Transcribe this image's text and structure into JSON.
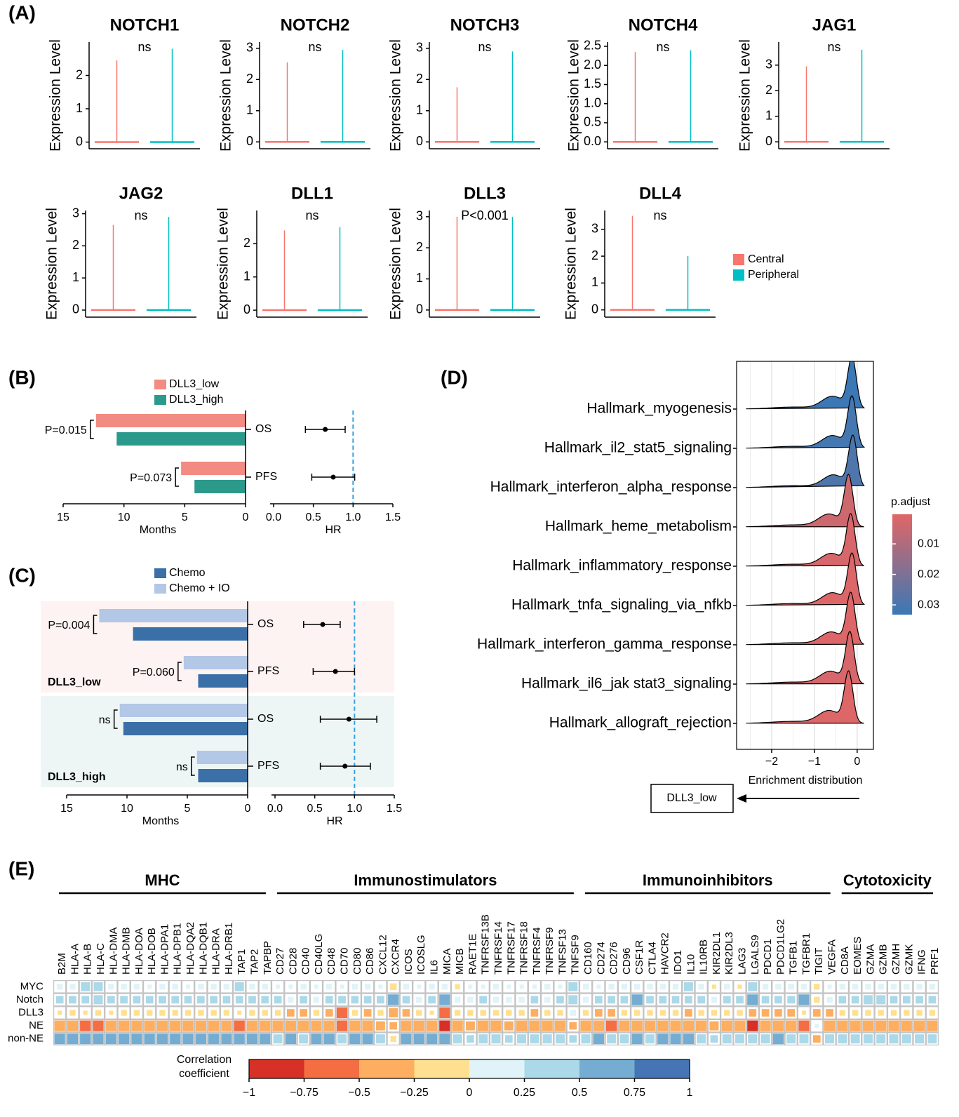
{
  "panel_labels": [
    "(A)",
    "(B)",
    "(C)",
    "(D)",
    "(E)"
  ],
  "violin_legend": [
    {
      "name": "Central",
      "color": "#f8766d"
    },
    {
      "name": "Peripheral",
      "color": "#00bfc4"
    }
  ],
  "chart_data": [
    {
      "type": "violin",
      "title": "NOTCH1",
      "annotation": "ns",
      "ylabel": "Expression Level",
      "values": [
        2.45,
        2.8
      ],
      "ylim": [
        -0.2,
        3.0
      ],
      "yticks": [
        0,
        1,
        2
      ]
    },
    {
      "type": "violin",
      "title": "NOTCH2",
      "annotation": "ns",
      "ylabel": "Expression Level",
      "values": [
        2.55,
        2.95
      ],
      "ylim": [
        -0.22,
        3.2
      ],
      "yticks": [
        0,
        1,
        2,
        3
      ]
    },
    {
      "type": "violin",
      "title": "NOTCH3",
      "annotation": "ns",
      "ylabel": "Expression Level",
      "values": [
        1.75,
        2.9
      ],
      "ylim": [
        -0.22,
        3.2
      ],
      "yticks": [
        0,
        1,
        2,
        3
      ]
    },
    {
      "type": "violin",
      "title": "NOTCH4",
      "annotation": "ns",
      "ylabel": "Expression Level",
      "values": [
        2.35,
        2.4
      ],
      "ylim": [
        -0.18,
        2.61
      ],
      "yticks": [
        {
          "value": 0,
          "label": "0.0"
        },
        0.5,
        {
          "value": 1,
          "label": "1.0"
        },
        1.5,
        {
          "value": 2,
          "label": "2.0"
        },
        2.5
      ]
    },
    {
      "type": "violin",
      "title": "JAG1",
      "annotation": "ns",
      "ylabel": "Expression Level",
      "values": [
        2.95,
        3.6
      ],
      "ylim": [
        -0.27,
        3.9
      ],
      "yticks": [
        0,
        1,
        2,
        3
      ]
    },
    {
      "type": "violin",
      "title": "JAG2",
      "annotation": "ns",
      "ylabel": "Expression Level",
      "values": [
        2.65,
        2.9
      ],
      "ylim": [
        -0.22,
        3.1
      ],
      "yticks": [
        0,
        1,
        2,
        3
      ]
    },
    {
      "type": "violin",
      "title": "DLL1",
      "annotation": "ns",
      "ylabel": "Expression Level",
      "values": [
        2.4,
        2.5
      ],
      "ylim": [
        -0.21,
        3.0
      ],
      "yticks": [
        0,
        1,
        2
      ]
    },
    {
      "type": "violin",
      "title": "DLL3",
      "annotation": "P<0.001",
      "ylabel": "Expression Level",
      "values": [
        3.0,
        3.0
      ],
      "ylim": [
        -0.23,
        3.2
      ],
      "yticks": [
        0,
        1,
        2,
        3
      ]
    },
    {
      "type": "violin",
      "title": "DLL4",
      "annotation": "ns",
      "ylabel": "Expression Level",
      "values": [
        3.5,
        2.0
      ],
      "ylim": [
        -0.27,
        3.7
      ],
      "yticks": [
        0,
        1,
        2,
        3
      ]
    },
    {
      "type": "hbar",
      "categories": [
        "OS",
        "PFS"
      ],
      "series": [
        {
          "name": "DLL3_low",
          "color": "#f28b82",
          "values": [
            12.3,
            5.3
          ]
        },
        {
          "name": "DLL3_high",
          "color": "#2b9a8b",
          "values": [
            10.6,
            4.2
          ]
        }
      ],
      "annotations": [
        "P=0.015",
        "P=0.073"
      ],
      "xlim": [
        0,
        15
      ],
      "xticks": [
        0,
        5,
        10,
        15
      ],
      "xlabel": "Months"
    },
    {
      "type": "forest",
      "values": [
        0.65,
        0.75
      ],
      "ci_low": [
        0.4,
        0.48
      ],
      "ci_high": [
        0.9,
        1.02
      ],
      "reference": 1,
      "xlim": [
        0,
        1.5
      ],
      "xticks": [
        {
          "value": 0,
          "label": "0.0"
        },
        0.5,
        {
          "value": 1,
          "label": "1.0"
        },
        1.5
      ],
      "xlabel": "HR"
    },
    {
      "type": "hbar",
      "categories": [
        "OS",
        "PFS",
        "OS",
        "PFS"
      ],
      "groups": [
        {
          "name": "DLL3_low",
          "color": "#f07c74",
          "background": "#fdf3f2"
        },
        {
          "name": "DLL3_high",
          "color": "#2b9a8b",
          "background": "#eef6f5"
        }
      ],
      "series": [
        {
          "name": "Chemo",
          "color": "#3a6fa8",
          "values": [
            9.5,
            4.1,
            10.3,
            4.1
          ]
        },
        {
          "name": "Chemo + IO",
          "color": "#b3c7e6",
          "values": [
            12.3,
            5.3,
            10.6,
            4.2
          ]
        }
      ],
      "annotations": [
        "P=0.004",
        "P=0.060",
        "ns",
        "ns"
      ],
      "xlim": [
        0,
        15
      ],
      "xticks": [
        0,
        5,
        10,
        15
      ],
      "xlabel": "Months"
    },
    {
      "type": "forest",
      "values": [
        0.6,
        0.76,
        0.93,
        0.88
      ],
      "ci_low": [
        0.36,
        0.48,
        0.57,
        0.57
      ],
      "ci_high": [
        0.82,
        1.0,
        1.28,
        1.2
      ],
      "reference": 1,
      "xlim": [
        0,
        1.5
      ],
      "xticks": [
        {
          "value": 0,
          "label": "0.0"
        },
        0.5,
        {
          "value": 1,
          "label": "1.0"
        },
        1.5
      ],
      "xlabel": "HR"
    },
    {
      "type": "ridge",
      "categories": [
        "Hallmark_myogenesis",
        "Hallmark_il2_stat5_signaling",
        "Hallmark_interferon_alpha_response",
        "Hallmark_heme_metabolism",
        "Hallmark_inflammatory_response",
        "Hallmark_tnfa_signaling_via_nfkb",
        "Hallmark_interferon_gamma_response",
        "Hallmark_il6_jak stat3_signaling",
        "Hallmark_allograft_rejection"
      ],
      "label_colors": [
        "#000000",
        "#e8191e",
        "#e8191e",
        "#000000",
        "#e8191e",
        "#e8191e",
        "#e8191e",
        "#e8191e",
        "#000000"
      ],
      "values": [
        -0.12,
        -0.12,
        -0.1,
        -0.2,
        -0.15,
        -0.12,
        -0.15,
        -0.17,
        -0.2
      ],
      "p_adjust": [
        0.033,
        0.031,
        0.029,
        0.004,
        0.002,
        0.001,
        0.001,
        0.002,
        0.001
      ],
      "xlim": [
        -2.82,
        0.38
      ],
      "xticks": [
        {
          "value": -2,
          "label": "−2"
        },
        {
          "value": -1,
          "label": "−1"
        },
        0
      ],
      "grid": true,
      "xlabel": "Enrichment distribution",
      "direction_label": "DLL3_low",
      "colorbar": {
        "title": "p.adjust",
        "colors": [
          "#e06666",
          "#3a78b5"
        ],
        "clim": [
          0.0003,
          0.0332
        ],
        "ticks": [
          0.01,
          0.02,
          0.03
        ]
      }
    },
    {
      "type": "heatmap",
      "groups": [
        {
          "name": "MHC",
          "columns": [
            "B2M",
            "HLA-A",
            "HLA-B",
            "HLA-C",
            "HLA-DMA",
            "HLA-DMB",
            "HLA-DOA",
            "HLA-DOB",
            "HLA-DPA1",
            "HLA-DPB1",
            "HLA-DQA2",
            "HLA-DQB1",
            "HLA-DRA",
            "HLA-DRB1",
            "TAP1",
            "TAP2",
            "TAPBP"
          ]
        },
        {
          "name": "Immunostimulators",
          "columns": [
            "CD27",
            "CD28",
            "CD40",
            "CD40LG",
            "CD48",
            "CD70",
            "CD80",
            "CD86",
            "CXCL12",
            "CXCR4",
            "ICOS",
            "ICOSLG",
            "IL6",
            "MICA",
            "MICB",
            "RAET1E",
            "TNFRSF13B",
            "TNFRSF14",
            "TNFRSF17",
            "TNFRSF18",
            "TNFRSF4",
            "TNFRSF9",
            "TNFSF13",
            "TNFSF9"
          ]
        },
        {
          "name": "Immunoinhibitors",
          "columns": [
            "CD160",
            "CD274",
            "CD276",
            "CD96",
            "CSF1R",
            "CTLA4",
            "HAVCR2",
            "IDO1",
            "IL10",
            "IL10RB",
            "KIR2DL1",
            "KIR2DL3",
            "LAG3",
            "LGALS9",
            "PDCD1",
            "PDCD1LG2",
            "TGFB1",
            "TGFBR1",
            "TIGIT",
            "VEGFA"
          ]
        },
        {
          "name": "Cytotoxicity",
          "columns": [
            "CD8A",
            "EOMES",
            "GZMA",
            "GZMB",
            "GZMH",
            "GZMK",
            "IFNG",
            "PRF1"
          ]
        }
      ],
      "rows": [
        "MYC",
        "Notch",
        "DLL3",
        "NE",
        "non-NE"
      ],
      "values": [
        [
          0.2,
          0.2,
          0.4,
          0.4,
          0.2,
          0.2,
          0.2,
          0.1,
          0.2,
          0.2,
          0.1,
          0.2,
          0.2,
          0.2,
          0.4,
          0.2,
          0.2,
          0.1,
          0.1,
          0.2,
          0.1,
          0.2,
          0.1,
          0.2,
          0.2,
          0.1,
          -0.25,
          0.2,
          0.1,
          0.2,
          0.2,
          -0.15,
          0.1,
          0.1,
          0.2,
          0.1,
          0.1,
          0.1,
          0.2,
          0.1,
          0.4,
          0.2,
          0.1,
          0.2,
          0.2,
          0.2,
          0.2,
          0.2,
          0.2,
          0.4,
          0.2,
          -0.1,
          0.2,
          -0.1,
          0.4,
          0.2,
          0.2,
          0.2,
          0.2,
          -0.2,
          0.1,
          0.2,
          0.2,
          0.2,
          0.2,
          0.2,
          0.2,
          0.2,
          0.2
        ],
        [
          0.3,
          0.3,
          0.3,
          0.4,
          0.3,
          0.3,
          0.3,
          0.3,
          0.3,
          0.3,
          0.3,
          0.3,
          0.3,
          0.3,
          0.3,
          0.3,
          0.3,
          0.3,
          0.2,
          0.3,
          0.2,
          0.3,
          0.3,
          0.3,
          0.3,
          0.3,
          0.6,
          0.3,
          0.2,
          0.3,
          0.6,
          0.2,
          0.2,
          0.3,
          0.2,
          0.2,
          0.2,
          0.3,
          0.2,
          0.3,
          0.4,
          0.2,
          0.3,
          0.3,
          0.3,
          0.6,
          0.3,
          0.3,
          0.3,
          0.3,
          0.3,
          0.2,
          0.3,
          0.3,
          0.5,
          0.3,
          0.3,
          0.3,
          0.6,
          -0.2,
          0.2,
          0.3,
          0.3,
          0.4,
          0.4,
          0.3,
          0.3,
          0.3,
          0.3
        ],
        [
          -0.1,
          -0.2,
          -0.1,
          -0.2,
          -0.1,
          -0.2,
          -0.2,
          -0.2,
          -0.2,
          -0.2,
          -0.2,
          -0.2,
          -0.2,
          -0.2,
          -0.1,
          -0.2,
          -0.2,
          -0.2,
          -0.3,
          -0.3,
          -0.2,
          -0.3,
          -0.6,
          -0.2,
          -0.3,
          -0.2,
          -0.4,
          -0.3,
          -0.2,
          -0.1,
          -0.6,
          -0.2,
          -0.2,
          -0.2,
          -0.2,
          -0.2,
          -0.2,
          -0.3,
          -0.2,
          -0.2,
          0.2,
          -0.2,
          -0.3,
          -0.3,
          -0.2,
          -0.2,
          -0.2,
          -0.2,
          -0.2,
          -0.3,
          -0.2,
          -0.2,
          -0.2,
          -0.2,
          -0.3,
          -0.3,
          -0.3,
          -0.3,
          -0.1,
          -0.3,
          -0.3,
          -0.2,
          -0.2,
          -0.2,
          -0.2,
          -0.2,
          -0.2,
          -0.2,
          -0.2
        ],
        [
          -0.5,
          -0.5,
          -0.6,
          -0.6,
          -0.5,
          -0.5,
          -0.5,
          -0.5,
          -0.5,
          -0.5,
          -0.5,
          -0.5,
          -0.5,
          -0.5,
          -0.6,
          -0.5,
          -0.5,
          -0.5,
          -0.5,
          -0.5,
          -0.5,
          -0.5,
          -0.6,
          -0.5,
          -0.5,
          -0.4,
          -0.3,
          -0.5,
          -0.5,
          -0.5,
          -0.9,
          -0.5,
          -0.4,
          -0.5,
          -0.5,
          -0.4,
          -0.5,
          -0.5,
          -0.5,
          -0.5,
          -0.3,
          -0.5,
          -0.5,
          -0.6,
          -0.5,
          -0.5,
          -0.5,
          -0.5,
          -0.5,
          -0.5,
          -0.5,
          -0.4,
          -0.5,
          -0.5,
          -0.8,
          -0.5,
          -0.5,
          -0.5,
          -0.6,
          0.1,
          -0.5,
          -0.5,
          -0.5,
          -0.5,
          -0.5,
          -0.5,
          -0.5,
          -0.5,
          -0.5
        ],
        [
          0.6,
          0.6,
          0.6,
          0.6,
          0.6,
          0.6,
          0.6,
          0.5,
          0.6,
          0.6,
          0.5,
          0.6,
          0.6,
          0.6,
          0.6,
          0.6,
          0.6,
          0.4,
          0.5,
          0.4,
          0.5,
          0.5,
          0.4,
          0.6,
          0.6,
          0.4,
          -0.2,
          0.6,
          0.5,
          0.5,
          0.6,
          0.4,
          0.3,
          0.4,
          0.4,
          0.3,
          0.4,
          0.4,
          0.4,
          0.4,
          0.3,
          0.4,
          0.5,
          0.4,
          0.4,
          0.6,
          0.4,
          0.6,
          0.5,
          0.6,
          0.4,
          0.3,
          0.4,
          0.4,
          0.4,
          0.4,
          0.5,
          0.4,
          0.4,
          -0.3,
          0.4,
          0.4,
          0.4,
          0.4,
          0.4,
          0.4,
          0.4,
          0.4,
          0.4
        ]
      ],
      "colorbar": {
        "title": "Correlation coefficient",
        "colors": [
          "#d73027",
          "#f46d43",
          "#fdae61",
          "#fee090",
          "#e0f3f8",
          "#abd9e9",
          "#74add1",
          "#4575b4"
        ],
        "ticks": [
          {
            "value": -1,
            "label": "−1"
          },
          {
            "value": -0.75,
            "label": "−0.75"
          },
          {
            "value": -0.5,
            "label": "−0.5"
          },
          {
            "value": -0.25,
            "label": "−0.25"
          },
          0,
          0.25,
          0.5,
          0.75,
          1
        ]
      }
    }
  ]
}
